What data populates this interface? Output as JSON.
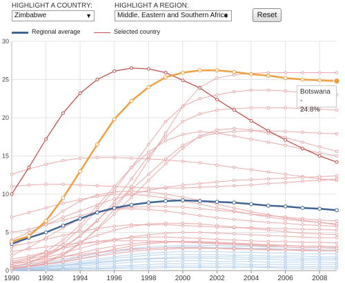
{
  "controls": {
    "country_label": "HIGHLIGHT A COUNTRY:",
    "country_value": "Zimbabwe",
    "region_label": "HIGHLIGHT A REGION:",
    "region_value": "Middle, Eastern and Southern Africa",
    "reset_label": "Reset"
  },
  "legend": {
    "regional": "Regional average",
    "selected": "Selected country"
  },
  "tooltip": {
    "line1": "Botswana -",
    "line2": "24.8%"
  },
  "colors": {
    "regional": "#3d6494",
    "selected": "#c0504d",
    "highlight": "#f0a040",
    "faint_red": "#e8a0a0",
    "faint_blue": "#a8c8ea"
  },
  "chart_data": {
    "type": "line",
    "x": [
      1990,
      1991,
      1992,
      1993,
      1994,
      1995,
      1996,
      1997,
      1998,
      1999,
      2000,
      2001,
      2002,
      2003,
      2004,
      2005,
      2006,
      2007,
      2008,
      2009
    ],
    "xlim": [
      1990,
      2009
    ],
    "ylim": [
      0,
      30
    ],
    "x_ticks": [
      "1990",
      "1992",
      "1994",
      "1996",
      "1998",
      "2000",
      "2002",
      "2004",
      "2006",
      "2008"
    ],
    "y_ticks": [
      "0",
      "5",
      "10",
      "15",
      "20",
      "25",
      "30"
    ],
    "grid": true,
    "series": [
      {
        "name": "Regional average",
        "role": "regional",
        "values": [
          3.5,
          4.3,
          5.0,
          5.9,
          6.8,
          7.6,
          8.2,
          8.6,
          8.9,
          9.1,
          9.2,
          9.1,
          9.0,
          8.9,
          8.7,
          8.5,
          8.4,
          8.2,
          8.1,
          7.9
        ]
      },
      {
        "name": "Selected country",
        "role": "selected",
        "values": [
          10.0,
          13.5,
          17.2,
          20.6,
          23.2,
          25.0,
          26.1,
          26.5,
          26.4,
          25.9,
          24.9,
          23.9,
          22.4,
          21.0,
          19.6,
          18.3,
          17.1,
          16.0,
          15.0,
          14.2
        ]
      },
      {
        "name": "Botswana",
        "role": "highlight",
        "values": [
          3.8,
          4.5,
          6.5,
          9.5,
          13.0,
          16.5,
          19.8,
          22.2,
          24.0,
          25.3,
          25.9,
          26.2,
          26.2,
          26.0,
          25.7,
          25.5,
          25.2,
          25.0,
          24.9,
          24.8
        ]
      },
      {
        "role": "faint_red",
        "values": [
          12.6,
          13.3,
          13.9,
          14.4,
          14.7,
          14.8,
          14.8,
          14.7,
          14.6,
          14.5,
          14.3,
          14.1,
          13.8,
          13.5,
          13.2,
          12.9,
          12.6,
          12.3,
          12.0,
          11.8
        ]
      },
      {
        "role": "faint_red",
        "values": [
          11.0,
          11.2,
          11.3,
          11.3,
          11.2,
          11.1,
          11.0,
          10.9,
          10.8,
          10.8,
          10.8,
          10.9,
          11.0,
          11.1,
          11.2,
          11.4,
          11.5,
          11.7,
          11.8,
          12.0
        ]
      },
      {
        "role": "faint_red",
        "values": [
          1.0,
          1.5,
          2.5,
          4.0,
          6.0,
          8.5,
          11.0,
          13.5,
          15.5,
          17.0,
          17.8,
          18.2,
          18.0,
          17.6,
          17.2,
          16.8,
          16.4,
          15.9,
          15.4,
          15.0
        ]
      },
      {
        "role": "faint_red",
        "values": [
          0.5,
          1.0,
          2.0,
          3.5,
          5.5,
          8.0,
          10.5,
          13.5,
          16.5,
          19.5,
          21.5,
          22.5,
          23.0,
          23.4,
          23.6,
          23.6,
          23.5,
          23.3,
          23.1,
          23.0
        ]
      },
      {
        "role": "faint_red",
        "values": [
          1.0,
          1.5,
          2.0,
          3.0,
          4.5,
          6.5,
          9.0,
          12.0,
          15.0,
          17.5,
          19.5,
          20.5,
          21.0,
          21.2,
          21.3,
          21.3,
          21.3,
          21.2,
          21.1,
          21.0
        ]
      },
      {
        "role": "faint_red",
        "values": [
          0.5,
          1.0,
          1.8,
          3.0,
          4.6,
          6.6,
          8.6,
          10.6,
          12.6,
          14.6,
          16.4,
          17.5,
          18.0,
          18.2,
          18.3,
          18.3,
          18.2,
          18.1,
          18.0,
          17.9
        ]
      },
      {
        "role": "faint_red",
        "values": [
          0.3,
          0.6,
          1.2,
          2.2,
          3.6,
          5.4,
          7.4,
          9.6,
          11.8,
          14.0,
          16.0,
          17.6,
          18.4,
          18.6,
          18.4,
          18.0,
          17.4,
          16.8,
          16.2,
          15.6
        ]
      },
      {
        "role": "faint_red",
        "values": [
          0.2,
          0.5,
          1.0,
          2.0,
          3.5,
          5.5,
          8.0,
          11.0,
          14.5,
          18.0,
          21.5,
          24.0,
          25.2,
          25.6,
          25.8,
          25.9,
          25.9,
          25.9,
          25.9,
          25.9
        ]
      },
      {
        "role": "faint_red",
        "values": [
          4.0,
          5.0,
          6.0,
          7.0,
          7.8,
          8.6,
          9.4,
          10.0,
          10.5,
          10.9,
          11.2,
          11.4,
          11.6,
          11.8,
          11.9,
          12.0,
          12.1,
          12.2,
          12.3,
          12.4
        ]
      },
      {
        "role": "faint_red",
        "values": [
          3.0,
          4.6,
          6.2,
          7.8,
          9.1,
          9.9,
          10.3,
          10.4,
          10.3,
          10.0,
          9.6,
          9.2,
          8.7,
          8.2,
          7.7,
          7.3,
          6.9,
          6.6,
          6.3,
          6.0
        ]
      },
      {
        "role": "faint_red",
        "values": [
          5.0,
          5.4,
          6.0,
          6.6,
          7.2,
          7.7,
          8.1,
          8.3,
          8.4,
          8.4,
          8.3,
          8.1,
          7.9,
          7.7,
          7.4,
          7.2,
          7.0,
          6.8,
          6.6,
          6.5
        ]
      },
      {
        "role": "faint_red",
        "values": [
          7.0,
          7.6,
          8.2,
          8.8,
          9.3,
          9.7,
          10.0,
          10.0,
          9.8,
          9.5,
          9.1,
          8.7,
          8.2,
          7.8,
          7.4,
          7.0,
          6.7,
          6.5,
          6.3,
          6.1
        ]
      },
      {
        "role": "faint_red",
        "values": [
          2.0,
          3.0,
          4.3,
          5.6,
          6.8,
          7.6,
          8.0,
          8.1,
          8.0,
          7.8,
          7.5,
          7.2,
          6.9,
          6.7,
          6.5,
          6.3,
          6.2,
          6.0,
          5.9,
          5.8
        ]
      },
      {
        "role": "faint_red",
        "values": [
          3.2,
          3.6,
          4.1,
          4.6,
          5.1,
          5.5,
          5.8,
          6.0,
          6.0,
          6.0,
          5.9,
          5.8,
          5.7,
          5.6,
          5.6,
          5.5,
          5.5,
          5.4,
          5.4,
          5.3
        ]
      },
      {
        "role": "faint_red",
        "values": [
          1.2,
          1.7,
          2.3,
          3.0,
          3.8,
          4.6,
          5.3,
          5.8,
          6.1,
          6.2,
          6.2,
          6.1,
          5.9,
          5.7,
          5.5,
          5.3,
          5.1,
          4.9,
          4.8,
          4.7
        ]
      },
      {
        "role": "faint_red",
        "values": [
          0.8,
          1.2,
          1.7,
          2.3,
          2.9,
          3.5,
          4.0,
          4.4,
          4.7,
          4.9,
          5.0,
          5.0,
          4.9,
          4.8,
          4.7,
          4.6,
          4.5,
          4.4,
          4.3,
          4.3
        ]
      },
      {
        "role": "faint_red",
        "values": [
          1.5,
          1.9,
          2.4,
          2.9,
          3.4,
          3.8,
          4.1,
          4.3,
          4.4,
          4.4,
          4.3,
          4.2,
          4.1,
          4.0,
          3.9,
          3.8,
          3.8,
          3.7,
          3.7,
          3.6
        ]
      },
      {
        "role": "faint_red",
        "values": [
          0.6,
          0.9,
          1.3,
          1.8,
          2.3,
          2.8,
          3.2,
          3.5,
          3.7,
          3.8,
          3.8,
          3.7,
          3.6,
          3.5,
          3.4,
          3.3,
          3.3,
          3.2,
          3.2,
          3.1
        ]
      },
      {
        "role": "faint_red",
        "values": [
          0.4,
          0.6,
          0.9,
          1.3,
          1.8,
          2.3,
          2.8,
          3.2,
          3.5,
          3.7,
          3.8,
          3.8,
          3.7,
          3.6,
          3.5,
          3.4,
          3.3,
          3.2,
          3.2,
          3.1
        ]
      },
      {
        "role": "faint_red",
        "values": [
          2.5,
          2.8,
          3.1,
          3.4,
          3.6,
          3.8,
          3.9,
          3.9,
          3.9,
          3.8,
          3.7,
          3.6,
          3.5,
          3.4,
          3.3,
          3.2,
          3.1,
          3.0,
          3.0,
          2.9
        ]
      },
      {
        "role": "faint_red",
        "values": [
          0.3,
          0.5,
          0.8,
          1.1,
          1.5,
          1.9,
          2.2,
          2.5,
          2.7,
          2.8,
          2.9,
          2.9,
          2.9,
          2.8,
          2.8,
          2.7,
          2.7,
          2.6,
          2.6,
          2.6
        ]
      },
      {
        "role": "faint_red",
        "values": [
          1.0,
          1.2,
          1.5,
          1.8,
          2.1,
          2.4,
          2.6,
          2.8,
          2.9,
          3.0,
          3.0,
          3.0,
          2.9,
          2.9,
          2.8,
          2.8,
          2.7,
          2.7,
          2.6,
          2.6
        ]
      },
      {
        "role": "faint_blue",
        "values": [
          0.3,
          0.5,
          0.8,
          1.2,
          1.6,
          2.0,
          2.4,
          2.7,
          2.9,
          3.0,
          3.1,
          3.1,
          3.0,
          3.0,
          2.9,
          2.9,
          2.8,
          2.8,
          2.7,
          2.7
        ]
      },
      {
        "role": "faint_blue",
        "values": [
          0.2,
          0.4,
          0.6,
          0.9,
          1.2,
          1.5,
          1.8,
          2.1,
          2.3,
          2.4,
          2.5,
          2.5,
          2.5,
          2.4,
          2.4,
          2.3,
          2.3,
          2.2,
          2.2,
          2.2
        ]
      },
      {
        "role": "faint_blue",
        "values": [
          0.1,
          0.3,
          0.5,
          0.7,
          1.0,
          1.3,
          1.6,
          1.8,
          2.0,
          2.1,
          2.1,
          2.1,
          2.1,
          2.0,
          2.0,
          1.9,
          1.9,
          1.9,
          1.8,
          1.8
        ]
      },
      {
        "role": "faint_blue",
        "values": [
          0.1,
          0.2,
          0.4,
          0.6,
          0.8,
          1.0,
          1.2,
          1.4,
          1.5,
          1.6,
          1.6,
          1.6,
          1.6,
          1.5,
          1.5,
          1.5,
          1.4,
          1.4,
          1.4,
          1.4
        ]
      },
      {
        "role": "faint_blue",
        "values": [
          0.1,
          0.2,
          0.3,
          0.4,
          0.6,
          0.8,
          0.9,
          1.1,
          1.2,
          1.2,
          1.3,
          1.3,
          1.2,
          1.2,
          1.2,
          1.1,
          1.1,
          1.1,
          1.1,
          1.0
        ]
      },
      {
        "role": "faint_blue",
        "values": [
          0.1,
          0.1,
          0.2,
          0.3,
          0.4,
          0.5,
          0.6,
          0.7,
          0.8,
          0.9,
          0.9,
          0.9,
          0.9,
          0.9,
          0.8,
          0.8,
          0.8,
          0.8,
          0.8,
          0.8
        ]
      },
      {
        "role": "faint_blue",
        "values": [
          0.1,
          0.1,
          0.1,
          0.2,
          0.3,
          0.3,
          0.4,
          0.5,
          0.5,
          0.6,
          0.6,
          0.6,
          0.6,
          0.6,
          0.6,
          0.5,
          0.5,
          0.5,
          0.5,
          0.5
        ]
      },
      {
        "role": "faint_blue",
        "values": [
          0.0,
          0.1,
          0.1,
          0.1,
          0.2,
          0.2,
          0.3,
          0.3,
          0.3,
          0.4,
          0.4,
          0.4,
          0.4,
          0.4,
          0.4,
          0.4,
          0.3,
          0.3,
          0.3,
          0.3
        ]
      },
      {
        "role": "faint_blue",
        "values": [
          0.5,
          0.8,
          1.1,
          1.5,
          1.9,
          2.3,
          2.6,
          2.9,
          3.1,
          3.2,
          3.3,
          3.3,
          3.3,
          3.2,
          3.2,
          3.1,
          3.1,
          3.0,
          3.0,
          3.0
        ]
      },
      {
        "role": "faint_blue",
        "values": [
          0.2,
          0.3,
          0.5,
          0.7,
          0.9,
          1.1,
          1.3,
          1.5,
          1.6,
          1.7,
          1.8,
          1.8,
          1.8,
          1.8,
          1.7,
          1.7,
          1.7,
          1.6,
          1.6,
          1.6
        ]
      }
    ]
  }
}
